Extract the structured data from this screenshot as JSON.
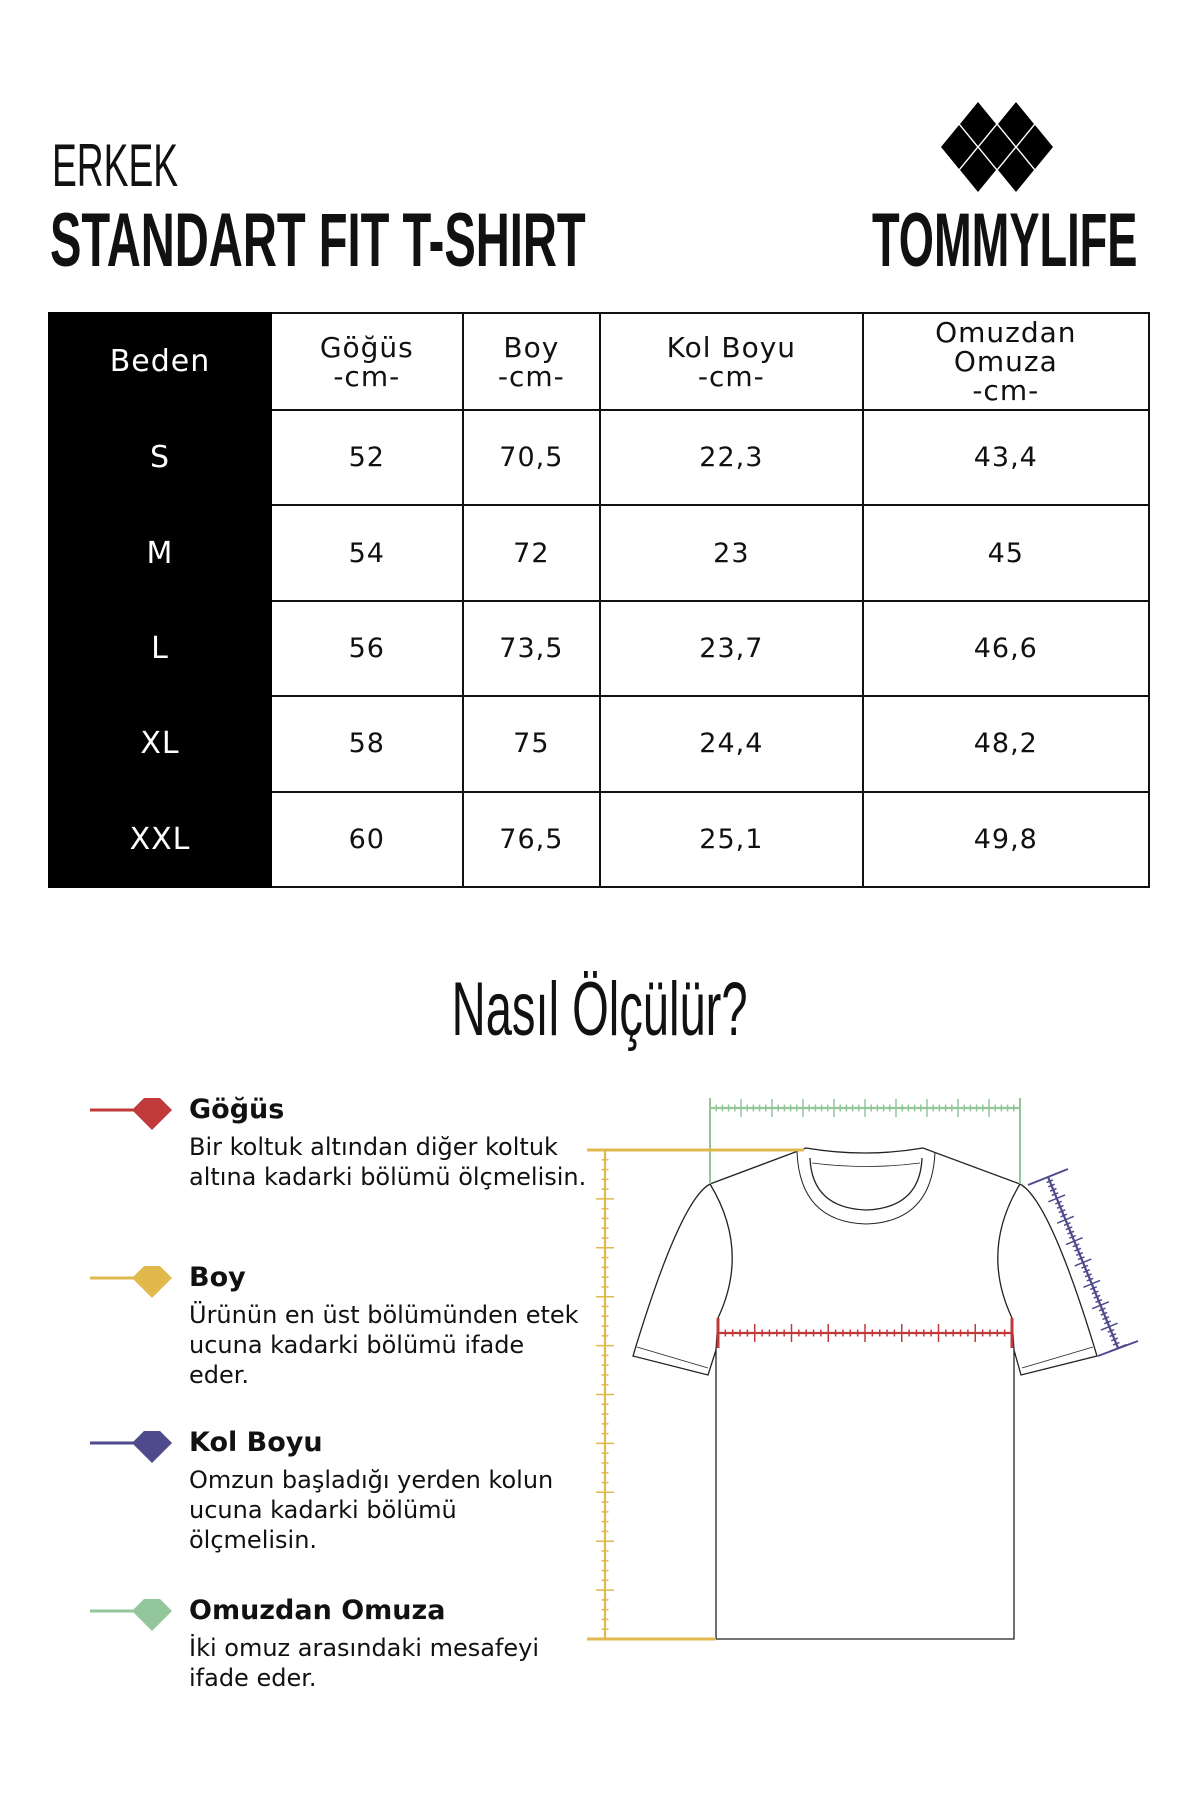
{
  "header": {
    "subtitle": "ERKEK",
    "title": "STANDART FIT T-SHIRT",
    "brand": "TOMMYLIFE",
    "logo_icon": "diamond-cluster-logo"
  },
  "table": {
    "columns": [
      "Beden",
      "Göğüs\n-cm-",
      "Boy\n-cm-",
      "Kol Boyu\n-cm-",
      "Omuzdan\nOmuza\n-cm-"
    ],
    "rows": [
      [
        "S",
        "52",
        "70,5",
        "22,3",
        "43,4"
      ],
      [
        "M",
        "54",
        "72",
        "23",
        "45"
      ],
      [
        "L",
        "56",
        "73,5",
        "23,7",
        "46,6"
      ],
      [
        "XL",
        "58",
        "75",
        "24,4",
        "48,2"
      ],
      [
        "XXL",
        "60",
        "76,5",
        "25,1",
        "49,8"
      ]
    ]
  },
  "howto": {
    "title": "Nasıl Ölçülür?"
  },
  "legend": [
    {
      "title": "Göğüs",
      "text": "Bir koltuk altından diğer koltuk altına kadarki bölümü ölçmelisin.",
      "color": "#c0393b"
    },
    {
      "title": "Boy",
      "text": "Ürünün en üst bölümünden etek ucuna kadarki bölümü ifade eder.",
      "color": "#e0b84c"
    },
    {
      "title": "Kol Boyu",
      "text": "Omzun başladığı yerden kolun ucuna kadarki bölümü ölçmelisin.",
      "color": "#4f4a8c"
    },
    {
      "title": "Omuzdan Omuza",
      "text": "İki omuz arasındaki mesafeyi ifade eder.",
      "color": "#93c69a"
    }
  ]
}
